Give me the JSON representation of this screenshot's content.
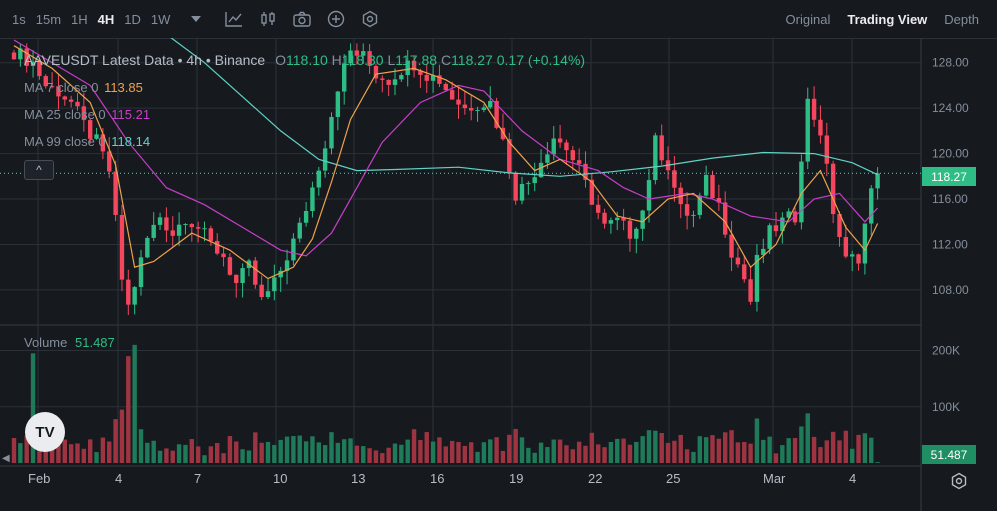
{
  "toolbar": {
    "timeframes": [
      {
        "label": "1s",
        "active": false
      },
      {
        "label": "15m",
        "active": false
      },
      {
        "label": "1H",
        "active": false
      },
      {
        "label": "4H",
        "active": true
      },
      {
        "label": "1D",
        "active": false
      },
      {
        "label": "1W",
        "active": false
      }
    ],
    "tools": [
      "chevron-down-icon",
      "indicator-icon",
      "chart-type-icon",
      "camera-icon",
      "plus-circle-icon",
      "settings-circle-icon"
    ],
    "view_tabs": [
      {
        "label": "Original",
        "active": false
      },
      {
        "label": "Trading View",
        "active": true
      },
      {
        "label": "Depth",
        "active": false
      }
    ]
  },
  "legend": {
    "title": "AAVEUSDT Latest Data",
    "sep1": "•",
    "interval": "4h",
    "sep2": "•",
    "exchange": "Binance",
    "o_label": "O",
    "o_value": "118.10",
    "h_label": "H",
    "h_value": "118.30",
    "l_label": "L",
    "l_value": "117.88",
    "c_label": "C",
    "c_value": "118.27",
    "change": "0.17",
    "change_pct": "(+0.14%)"
  },
  "mas": [
    {
      "label": "MA 7 close 0",
      "value": "113.85",
      "color": "#f0a14b"
    },
    {
      "label": "MA 25 close 0",
      "value": "115.21",
      "color": "#c73ec9"
    },
    {
      "label": "MA 99 close 0",
      "value": "118.14",
      "color": "#5fd3c6"
    }
  ],
  "collapse_label": "^",
  "volume": {
    "label": "Volume",
    "value": "51.487",
    "tag": "51.487"
  },
  "price_axis": {
    "labels": [
      "128.00",
      "124.00",
      "120.00",
      "116.00",
      "112.00",
      "108.00"
    ],
    "current": "118.27"
  },
  "volume_axis": {
    "labels": [
      "200K",
      "100K"
    ]
  },
  "time_axis": {
    "labels": [
      "Feb",
      "4",
      "7",
      "10",
      "13",
      "16",
      "19",
      "22",
      "25",
      "Mar",
      "4"
    ]
  },
  "logo_text": "TV",
  "colors": {
    "up": "#2ebd85",
    "down": "#f6465d",
    "bg": "#161a1e",
    "grid": "#2b3139"
  },
  "chart_data": {
    "type": "candlestick",
    "symbol": "AAVEUSDT",
    "interval": "4h",
    "ylim": [
      105,
      130
    ],
    "volume_ylim": [
      0,
      240000
    ],
    "x": [
      "Feb",
      "4",
      "7",
      "10",
      "13",
      "16",
      "19",
      "22",
      "25",
      "Mar",
      "4"
    ],
    "close_path": [
      [
        0,
        129.0
      ],
      [
        3,
        128.0
      ],
      [
        5,
        126.0
      ],
      [
        7,
        125.5
      ],
      [
        9,
        124.5
      ],
      [
        11,
        122.5
      ],
      [
        13,
        121.0
      ],
      [
        15,
        118.5
      ],
      [
        16,
        114.0
      ],
      [
        17,
        109.0
      ],
      [
        18,
        106.5
      ],
      [
        19,
        108.5
      ],
      [
        21,
        112.5
      ],
      [
        23,
        114.5
      ],
      [
        25,
        113.0
      ],
      [
        27,
        114.5
      ],
      [
        29,
        113.5
      ],
      [
        31,
        112.0
      ],
      [
        33,
        111.0
      ],
      [
        35,
        108.5
      ],
      [
        37,
        110.0
      ],
      [
        39,
        107.0
      ],
      [
        41,
        108.5
      ],
      [
        43,
        111.0
      ],
      [
        45,
        113.5
      ],
      [
        47,
        117.0
      ],
      [
        49,
        121.0
      ],
      [
        51,
        126.0
      ],
      [
        53,
        129.0
      ],
      [
        55,
        128.5
      ],
      [
        57,
        127.0
      ],
      [
        59,
        126.5
      ],
      [
        61,
        127.5
      ],
      [
        63,
        128.0
      ],
      [
        65,
        127.0
      ],
      [
        67,
        126.5
      ],
      [
        69,
        125.0
      ],
      [
        71,
        124.0
      ],
      [
        73,
        124.5
      ],
      [
        75,
        124.5
      ],
      [
        77,
        121.0
      ],
      [
        79,
        116.5
      ],
      [
        81,
        117.5
      ],
      [
        83,
        119.5
      ],
      [
        85,
        121.5
      ],
      [
        87,
        120.5
      ],
      [
        89,
        118.5
      ],
      [
        91,
        116.0
      ],
      [
        93,
        113.5
      ],
      [
        95,
        114.0
      ],
      [
        97,
        113.0
      ],
      [
        99,
        115.0
      ],
      [
        101,
        121.0
      ],
      [
        103,
        119.0
      ],
      [
        105,
        115.0
      ],
      [
        107,
        114.5
      ],
      [
        109,
        117.5
      ],
      [
        111,
        115.5
      ],
      [
        113,
        111.5
      ],
      [
        115,
        109.0
      ],
      [
        116,
        107.0
      ],
      [
        117,
        110.5
      ],
      [
        119,
        113.0
      ],
      [
        121,
        114.0
      ],
      [
        123,
        114.5
      ],
      [
        124,
        120.0
      ],
      [
        125,
        124.5
      ],
      [
        127,
        122.0
      ],
      [
        129,
        115.0
      ],
      [
        131,
        110.5
      ],
      [
        133,
        111.0
      ],
      [
        135,
        116.5
      ],
      [
        136,
        118.27
      ]
    ],
    "ma7": [
      [
        0,
        129.5
      ],
      [
        6,
        127.5
      ],
      [
        12,
        124.5
      ],
      [
        16,
        119.0
      ],
      [
        19,
        110.0
      ],
      [
        22,
        110.5
      ],
      [
        28,
        113.0
      ],
      [
        34,
        111.5
      ],
      [
        40,
        109.0
      ],
      [
        44,
        110.0
      ],
      [
        47,
        112.5
      ],
      [
        50,
        117.5
      ],
      [
        53,
        123.0
      ],
      [
        57,
        127.0
      ],
      [
        63,
        127.5
      ],
      [
        68,
        126.5
      ],
      [
        74,
        124.5
      ],
      [
        78,
        121.0
      ],
      [
        82,
        118.5
      ],
      [
        86,
        119.5
      ],
      [
        91,
        117.5
      ],
      [
        95,
        114.5
      ],
      [
        99,
        114.0
      ],
      [
        103,
        116.0
      ],
      [
        107,
        116.5
      ],
      [
        112,
        114.0
      ],
      [
        116,
        110.0
      ],
      [
        120,
        112.0
      ],
      [
        124,
        116.5
      ],
      [
        127,
        118.5
      ],
      [
        131,
        113.5
      ],
      [
        134,
        111.5
      ],
      [
        136,
        113.85
      ]
    ],
    "ma25": [
      [
        0,
        130.0
      ],
      [
        12,
        126.0
      ],
      [
        18,
        121.0
      ],
      [
        24,
        117.0
      ],
      [
        30,
        115.5
      ],
      [
        36,
        113.5
      ],
      [
        42,
        111.5
      ],
      [
        46,
        111.0
      ],
      [
        50,
        113.0
      ],
      [
        54,
        117.0
      ],
      [
        58,
        121.0
      ],
      [
        64,
        124.5
      ],
      [
        70,
        126.0
      ],
      [
        74,
        125.5
      ],
      [
        80,
        122.0
      ],
      [
        86,
        119.5
      ],
      [
        92,
        118.5
      ],
      [
        96,
        117.0
      ],
      [
        100,
        116.0
      ],
      [
        106,
        116.5
      ],
      [
        110,
        116.0
      ],
      [
        116,
        114.5
      ],
      [
        122,
        114.0
      ],
      [
        126,
        116.0
      ],
      [
        130,
        116.5
      ],
      [
        134,
        114.0
      ],
      [
        136,
        115.21
      ]
    ],
    "ma99": [
      [
        24,
        130.5
      ],
      [
        30,
        128.0
      ],
      [
        36,
        125.0
      ],
      [
        42,
        122.0
      ],
      [
        48,
        119.5
      ],
      [
        54,
        118.5
      ],
      [
        60,
        118.6
      ],
      [
        70,
        118.8
      ],
      [
        78,
        118.3
      ],
      [
        86,
        118.0
      ],
      [
        94,
        118.4
      ],
      [
        102,
        118.9
      ],
      [
        110,
        119.6
      ],
      [
        118,
        120.1
      ],
      [
        126,
        120.0
      ],
      [
        132,
        119.2
      ],
      [
        136,
        118.14
      ]
    ],
    "current_price": 118.27,
    "last_volume": 51.487
  }
}
